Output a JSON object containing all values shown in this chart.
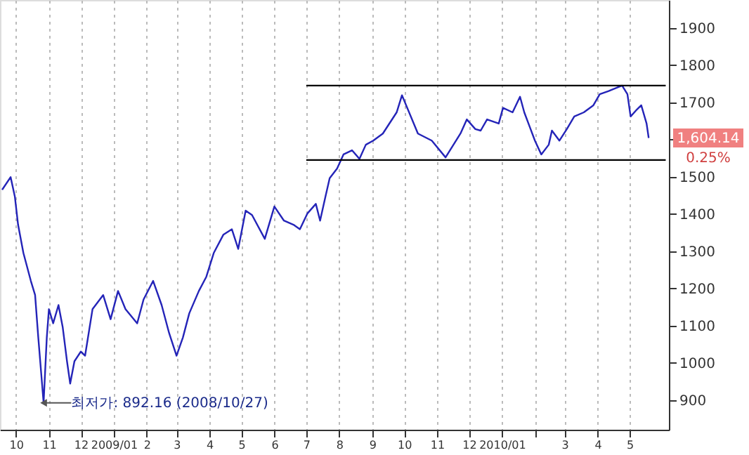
{
  "chart_data": {
    "type": "line",
    "x": [
      "2008-09-18",
      "2008-09-26",
      "2008-09-30",
      "2008-10-03",
      "2008-10-08",
      "2008-10-15",
      "2008-10-19",
      "2008-10-22",
      "2008-10-27",
      "2008-10-30",
      "2008-11-01",
      "2008-11-05",
      "2008-11-10",
      "2008-11-14",
      "2008-11-18",
      "2008-11-21",
      "2008-11-25",
      "2008-12-01",
      "2008-12-05",
      "2008-12-12",
      "2008-12-22",
      "2008-12-29",
      "2009-01-05",
      "2009-01-12",
      "2009-01-23",
      "2009-01-29",
      "2009-02-07",
      "2009-02-15",
      "2009-02-22",
      "2009-03-01",
      "2009-03-07",
      "2009-03-13",
      "2009-03-22",
      "2009-03-29",
      "2009-04-05",
      "2009-04-14",
      "2009-04-22",
      "2009-04-28",
      "2009-05-05",
      "2009-05-11",
      "2009-05-23",
      "2009-06-01",
      "2009-06-10",
      "2009-06-19",
      "2009-06-25",
      "2009-07-02",
      "2009-07-10",
      "2009-07-14",
      "2009-07-19",
      "2009-07-23",
      "2009-07-30",
      "2009-08-05",
      "2009-08-13",
      "2009-08-20",
      "2009-08-26",
      "2009-09-02",
      "2009-09-11",
      "2009-09-24",
      "2009-09-29",
      "2009-10-14",
      "2009-10-27",
      "2009-11-09",
      "2009-11-23",
      "2009-11-29",
      "2009-12-07",
      "2009-12-12",
      "2009-12-18",
      "2009-12-29",
      "2010-01-02",
      "2010-01-11",
      "2010-01-18",
      "2010-01-22",
      "2010-01-27",
      "2010-02-01",
      "2010-02-07",
      "2010-02-14",
      "2010-02-17",
      "2010-02-24",
      "2010-03-03",
      "2010-03-10",
      "2010-03-19",
      "2010-03-28",
      "2010-04-03",
      "2010-04-11",
      "2010-04-17",
      "2010-04-24",
      "2010-04-29",
      "2010-05-02",
      "2010-05-08",
      "2010-05-12",
      "2010-05-17",
      "2010-05-19"
    ],
    "series": [
      {
        "color": "#2424b8",
        "values": [
          1465,
          1499,
          1446,
          1371,
          1295,
          1220,
          1182,
          1068,
          892.16,
          1068,
          1144,
          1106,
          1155,
          1095,
          1004,
          944,
          1004,
          1030,
          1019,
          1144,
          1182,
          1117,
          1193,
          1144,
          1106,
          1170,
          1220,
          1155,
          1080,
          1019,
          1068,
          1133,
          1193,
          1231,
          1295,
          1344,
          1359,
          1306,
          1409,
          1397,
          1333,
          1420,
          1382,
          1371,
          1359,
          1401,
          1427,
          1382,
          1446,
          1496,
          1522,
          1560,
          1571,
          1548,
          1586,
          1597,
          1616,
          1673,
          1719,
          1616,
          1597,
          1552,
          1616,
          1654,
          1628,
          1624,
          1654,
          1643,
          1685,
          1673,
          1715,
          1673,
          1635,
          1597,
          1560,
          1586,
          1624,
          1597,
          1628,
          1662,
          1673,
          1692,
          1722,
          1730,
          1737,
          1745,
          1722,
          1662,
          1681,
          1692,
          1643,
          1604.14
        ]
      },
      {
        "type": "line",
        "color": "#000000",
        "x": [
          "2009-07-01",
          "2010-06-04"
        ],
        "values": [
          1745,
          1745
        ]
      },
      {
        "type": "line",
        "color": "#000000",
        "x": [
          "2009-07-01",
          "2010-06-04"
        ],
        "values": [
          1545,
          1545
        ]
      }
    ],
    "xlim": [
      "2008-09-16",
      "2010-06-07"
    ],
    "xticks": [
      {
        "value": "2008-10-01",
        "label": "10"
      },
      {
        "value": "2008-11-01",
        "label": "11"
      },
      {
        "value": "2008-12-01",
        "label": "12"
      },
      {
        "value": "2009-01-01",
        "label": "2009/01"
      },
      {
        "value": "2009-02-01",
        "label": "2"
      },
      {
        "value": "2009-03-01",
        "label": "3"
      },
      {
        "value": "2009-04-01",
        "label": "4"
      },
      {
        "value": "2009-05-01",
        "label": "5"
      },
      {
        "value": "2009-06-01",
        "label": "6"
      },
      {
        "value": "2009-07-01",
        "label": "7"
      },
      {
        "value": "2009-08-01",
        "label": "8"
      },
      {
        "value": "2009-09-01",
        "label": "9"
      },
      {
        "value": "2009-10-01",
        "label": "10"
      },
      {
        "value": "2009-11-01",
        "label": "11"
      },
      {
        "value": "2009-12-01",
        "label": "12"
      },
      {
        "value": "2010-01-01",
        "label": "2010/01"
      },
      {
        "value": "2010-02-01",
        "label": null
      },
      {
        "value": "2010-03-01",
        "label": "3"
      },
      {
        "value": "2010-04-01",
        "label": "4"
      },
      {
        "value": "2010-05-01",
        "label": "5"
      }
    ],
    "ylim": [
      820,
      1975
    ],
    "yticks": [
      900,
      1000,
      1100,
      1200,
      1300,
      1400,
      1500,
      {
        "value": 1600,
        "label": null
      },
      1700,
      1800,
      1900
    ],
    "grid": "x",
    "marker": "none",
    "line_style": "solid",
    "annotations": [
      {
        "text": "최저가: 892.16 (2008/10/27)",
        "x": "2008-10-27",
        "y": 892.16
      },
      "1,604.14",
      "0.25%"
    ]
  }
}
